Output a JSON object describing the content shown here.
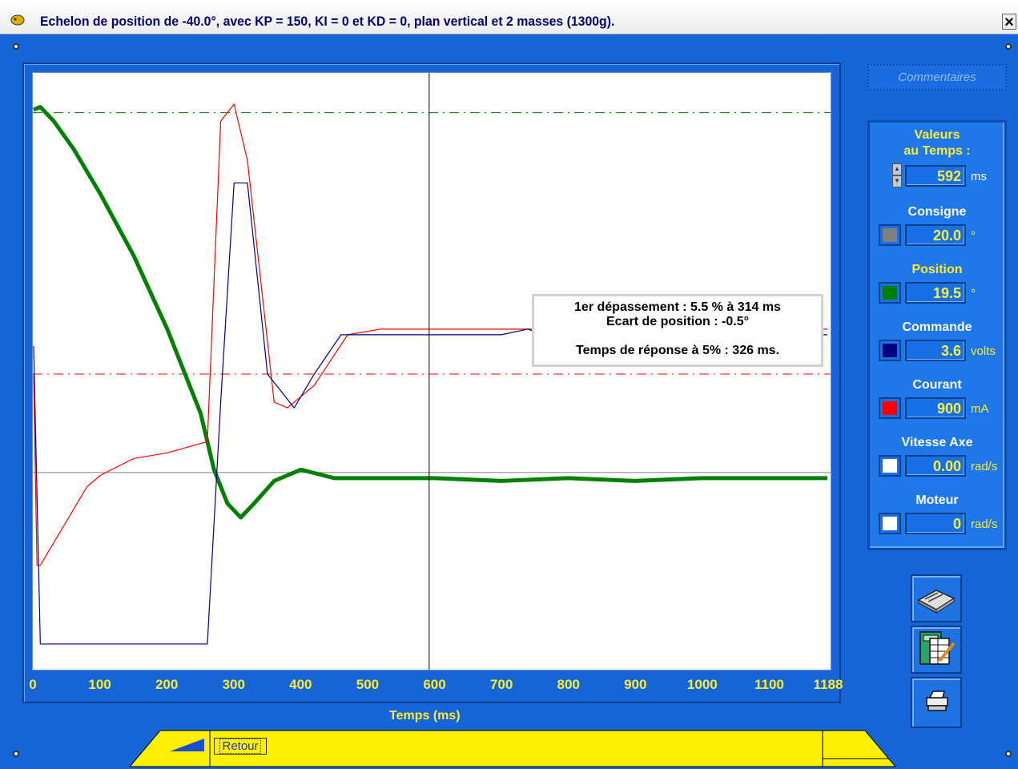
{
  "window": {
    "title": "Echelon de position de -40.0°, avec KP = 150, KI = 0 et KD = 0, plan vertical et 2 masses (1300g).",
    "close_label": "×"
  },
  "toolbar": {
    "comments_label": "Commentaires",
    "retour_label": "Retour"
  },
  "panel": {
    "title_line1": "Valeurs",
    "title_line2": "au Temps :",
    "time_value": "592",
    "time_unit": "ms",
    "fields": [
      {
        "label": "Consigne",
        "value": "20.0",
        "unit": "°",
        "color": "#808080"
      },
      {
        "label": "Position",
        "value": "19.5",
        "unit": "°",
        "color": "#008000"
      },
      {
        "label": "Commande",
        "value": "3.6",
        "unit": "volts",
        "color": "#000080"
      },
      {
        "label": "Courant",
        "value": "900",
        "unit": "mA",
        "color": "#ff0000"
      },
      {
        "label": "Vitesse Axe",
        "value": "0.00",
        "unit": "rad/s",
        "color": "#ffffff"
      },
      {
        "label": "Moteur",
        "value": "0",
        "unit": "rad/s",
        "color": "#ffffff"
      }
    ],
    "label_color": "#ffea33",
    "label_color_alt": "#ffffff"
  },
  "annotation": {
    "line1": "1er dépassement   :   5.5 % à 314 ms",
    "line2": "Ecart de position :  -0.5°",
    "line3": "Temps de réponse à 5% : 326 ms."
  },
  "chart_data": {
    "type": "line",
    "xlabel": "Temps (ms)",
    "xlim": [
      0,
      1188
    ],
    "x_ticks": [
      0,
      100,
      200,
      300,
      400,
      500,
      600,
      700,
      800,
      900,
      1000,
      1100,
      1188
    ],
    "cursor_x": 592,
    "y_scale": "normalized 0-1 (no printed axis)",
    "series": [
      {
        "color": "#008000",
        "points": [
          [
            0,
            0.97
          ],
          [
            10,
            0.975
          ],
          [
            30,
            0.95
          ],
          [
            60,
            0.9
          ],
          [
            100,
            0.82
          ],
          [
            150,
            0.71
          ],
          [
            200,
            0.58
          ],
          [
            250,
            0.43
          ],
          [
            270,
            0.33
          ],
          [
            290,
            0.27
          ],
          [
            310,
            0.245
          ],
          [
            330,
            0.27
          ],
          [
            360,
            0.31
          ],
          [
            400,
            0.33
          ],
          [
            450,
            0.315
          ],
          [
            500,
            0.315
          ],
          [
            600,
            0.315
          ],
          [
            700,
            0.31
          ],
          [
            800,
            0.315
          ],
          [
            900,
            0.31
          ],
          [
            1000,
            0.315
          ],
          [
            1100,
            0.315
          ],
          [
            1188,
            0.315
          ]
        ]
      },
      {
        "color": "#ff0000",
        "points": [
          [
            0,
            0.5
          ],
          [
            5,
            0.16
          ],
          [
            10,
            0.16
          ],
          [
            50,
            0.24
          ],
          [
            80,
            0.3
          ],
          [
            100,
            0.32
          ],
          [
            150,
            0.35
          ],
          [
            200,
            0.36
          ],
          [
            260,
            0.38
          ],
          [
            280,
            0.95
          ],
          [
            300,
            0.98
          ],
          [
            320,
            0.88
          ],
          [
            360,
            0.45
          ],
          [
            380,
            0.44
          ],
          [
            420,
            0.48
          ],
          [
            470,
            0.57
          ],
          [
            520,
            0.58
          ],
          [
            700,
            0.58
          ],
          [
            1188,
            0.58
          ]
        ]
      },
      {
        "color": "#000080",
        "points": [
          [
            0,
            0.55
          ],
          [
            10,
            0.02
          ],
          [
            100,
            0.02
          ],
          [
            200,
            0.02
          ],
          [
            260,
            0.02
          ],
          [
            280,
            0.45
          ],
          [
            300,
            0.84
          ],
          [
            320,
            0.84
          ],
          [
            350,
            0.5
          ],
          [
            390,
            0.44
          ],
          [
            420,
            0.5
          ],
          [
            460,
            0.57
          ],
          [
            700,
            0.57
          ],
          [
            740,
            0.58
          ],
          [
            760,
            0.57
          ],
          [
            1188,
            0.57
          ]
        ]
      }
    ],
    "reference_lines": [
      {
        "style": "dash-dot",
        "color": "#008000",
        "y": 0.965
      },
      {
        "style": "dash-dot",
        "color": "#ff0000",
        "y": 0.5
      },
      {
        "style": "solid",
        "color": "#808080",
        "y": 0.325
      }
    ]
  }
}
